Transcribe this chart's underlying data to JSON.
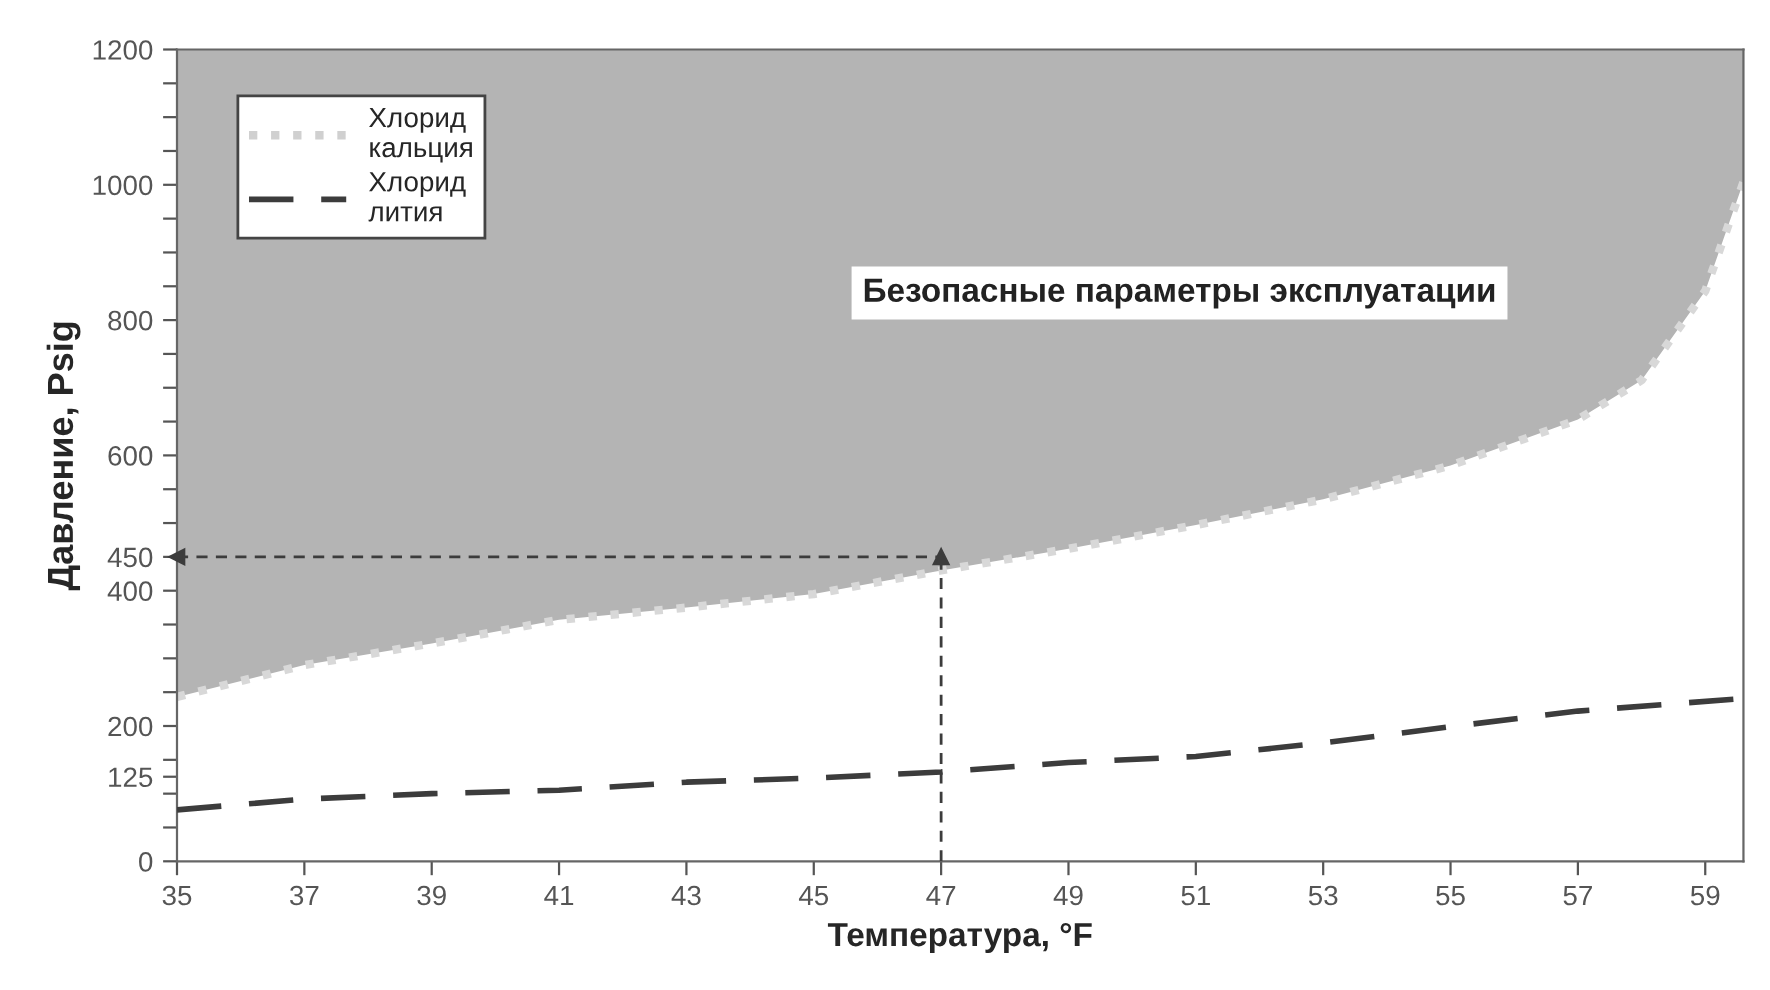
{
  "chart_data": {
    "type": "line",
    "xlabel": "Температура, °F",
    "ylabel": "Давление, Psig",
    "xlim": [
      35,
      59.6
    ],
    "xticks": [
      35,
      37,
      39,
      41,
      43,
      45,
      47,
      49,
      51,
      53,
      55,
      57,
      59
    ],
    "ylim": [
      0,
      1200
    ],
    "yticks": [
      0,
      {
        "value": 50,
        "label": null
      },
      {
        "value": 100,
        "label": null
      },
      125,
      {
        "value": 150,
        "label": null
      },
      200,
      {
        "value": 250,
        "label": null
      },
      {
        "value": 300,
        "label": null
      },
      {
        "value": 350,
        "label": null
      },
      400,
      450,
      {
        "value": 500,
        "label": null
      },
      {
        "value": 550,
        "label": null
      },
      600,
      {
        "value": 650,
        "label": null
      },
      {
        "value": 700,
        "label": null
      },
      {
        "value": 750,
        "label": null
      },
      800,
      {
        "value": 850,
        "label": null
      },
      {
        "value": 900,
        "label": null
      },
      {
        "value": 950,
        "label": null
      },
      1000,
      {
        "value": 1050,
        "label": null
      },
      {
        "value": 1100,
        "label": null
      },
      {
        "value": 1150,
        "label": null
      },
      1200
    ],
    "grid": false,
    "legend": "top left",
    "marker": "none",
    "series": [
      {
        "name": "Хлорид\nкальция",
        "type": "area",
        "color": "#b4b4b4",
        "line_style": "dotted",
        "x": [
          35,
          37,
          39,
          41,
          43,
          45,
          47,
          49,
          51,
          53,
          55,
          57,
          58,
          59,
          59.6
        ],
        "values": [
          243,
          290,
          322,
          357,
          375,
          395,
          430,
          462,
          497,
          535,
          585,
          653,
          711,
          843,
          1004
        ]
      },
      {
        "name": "Хлорид\nлития",
        "color": "#3c3c3c",
        "line_style": "dashed",
        "x": [
          35,
          37,
          39,
          41,
          43,
          45,
          47,
          49,
          51,
          53,
          55,
          57,
          59.5
        ],
        "values": [
          76,
          92,
          100,
          105,
          117,
          123,
          132,
          146,
          155,
          175,
          199,
          222,
          240
        ]
      }
    ],
    "ref_lines": [
      {
        "axis": "y",
        "value": 450,
        "line_style": "dashed",
        "color": "#3c3c3c"
      },
      {
        "axis": "x",
        "value": 47,
        "line_style": "dashed",
        "color": "#3c3c3c"
      }
    ],
    "annotations": [
      "Безопасные параметры эксплуатации"
    ]
  }
}
